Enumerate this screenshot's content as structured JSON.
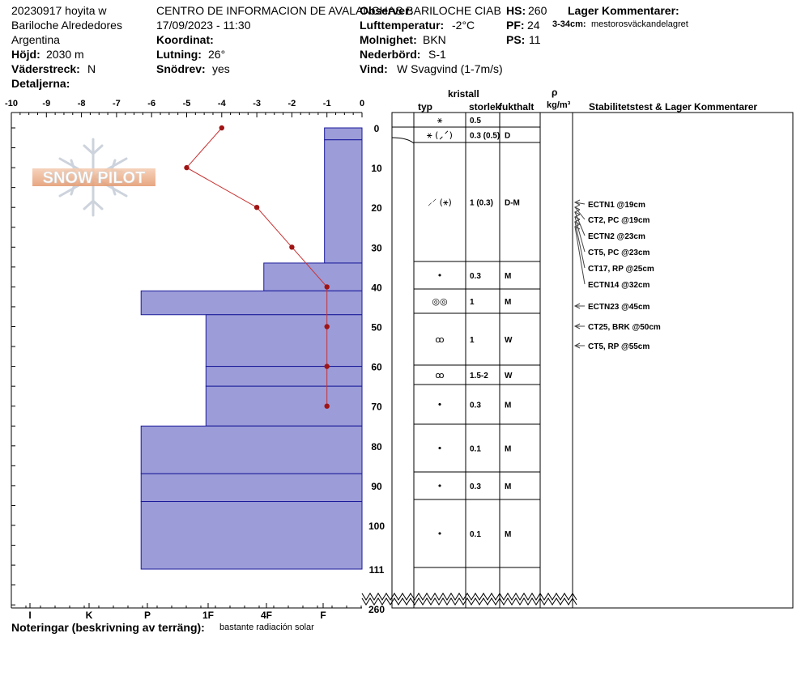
{
  "header": {
    "line1": "20230917 hoyita w",
    "line2": "Bariloche Alrededores",
    "line3": "Argentina",
    "hojd_label": "Höjd:",
    "hojd_value": "2030 m",
    "vader_label": "Väderstreck:",
    "vader_value": "N",
    "detaljerna_label": "Detaljerna:",
    "center_title": "CENTRO DE INFORMACION DE AVALANCHAS BARILOCHE CIAB",
    "datetime": "17/09/2023 - 11:30",
    "koordinat_label": "Koordinat:",
    "lutning_label": "Lutning:",
    "lutning_value": "26°",
    "snodrev_label": "Snödrev:",
    "snodrev_value": "yes",
    "observer_label": "Observer:",
    "lufttemp_label": "Lufttemperatur:",
    "lufttemp_value": "-2°C",
    "molnighet_label": "Molnighet:",
    "molnighet_value": "BKN",
    "nederbord_label": "Nederbörd:",
    "nederbord_value": "S-1",
    "vind_label": "Vind:",
    "vind_value": "W Svagvind (1-7m/s)",
    "hs_label": "HS:",
    "hs_value": "260",
    "pf_label": "PF:",
    "pf_value": "24",
    "ps_label": "PS:",
    "ps_value": "11",
    "lager_title": "Lager Kommentarer:",
    "lager_range": "3-34cm:",
    "lager_text": "mestorosväckandelagret"
  },
  "column_headers": {
    "kristall": "kristall",
    "typ": "typ",
    "storlek": "storlek",
    "fukthalt": "fukthalt",
    "rho": "ρ",
    "density_unit": "kg/m³",
    "stability": "Stabilitetstest & Lager Kommentarer"
  },
  "footer": {
    "notes_label": "Noteringar (beskrivning av terräng):",
    "notes_value": "bastante radiación solar"
  },
  "logo_text": "SNOW PILOT",
  "colors": {
    "hardness_fill": "#9c9cd8",
    "hardness_stroke": "#1a1a9a",
    "temp_line": "#c83232",
    "temp_point": "#a01414"
  },
  "chart_data": {
    "type": "snow-profile",
    "depth_axis": {
      "ticks": [
        0,
        10,
        20,
        30,
        40,
        50,
        60,
        70,
        80,
        90,
        100,
        111
      ],
      "bottom_label": "260",
      "range": [
        0,
        111
      ]
    },
    "temperature_axis": {
      "ticks": [
        "-10",
        "-9",
        "-8",
        "-7",
        "-6",
        "-5",
        "-4",
        "-3",
        "-2",
        "-1",
        "0"
      ],
      "range": [
        -10,
        0
      ]
    },
    "hardness_axis": {
      "labels": [
        "I",
        "K",
        "P",
        "1F",
        "4F",
        "F"
      ]
    },
    "temperature_profile": [
      {
        "depth": 0,
        "temp": -4
      },
      {
        "depth": 10,
        "temp": -5
      },
      {
        "depth": 20,
        "temp": -3
      },
      {
        "depth": 30,
        "temp": -2
      },
      {
        "depth": 40,
        "temp": -1
      },
      {
        "depth": 50,
        "temp": -1
      },
      {
        "depth": 60,
        "temp": -1
      },
      {
        "depth": 70,
        "temp": -1
      }
    ],
    "layers": [
      {
        "top": 0,
        "bottom": 3,
        "hardness": 1.07,
        "typ": "⚹",
        "size": "0.5",
        "wetness": ""
      },
      {
        "top": 3,
        "bottom": 34,
        "hardness": 1.07,
        "typ": "⚹ (⸝⸍)",
        "size": "0.3 (0.5)",
        "wetness": "D"
      },
      {
        "top": 34,
        "bottom": 41,
        "hardness": 2.8,
        "typ": "⸝⸍ (⚹)",
        "size": "1 (0.3)",
        "wetness": "D-M"
      },
      {
        "top": 41,
        "bottom": 47,
        "hardness": 6.3,
        "typ": "•",
        "size": "0.3",
        "wetness": "M"
      },
      {
        "top": 47,
        "bottom": 60,
        "hardness": 4.45,
        "typ": "◎◎",
        "size": "1",
        "wetness": "M"
      },
      {
        "top": 60,
        "bottom": 65,
        "hardness": 4.45,
        "typ": "ꝏ",
        "size": "1",
        "wetness": "W"
      },
      {
        "top": 65,
        "bottom": 75,
        "hardness": 4.45,
        "typ": "ꝏ",
        "size": "1.5-2",
        "wetness": "W"
      },
      {
        "top": 75,
        "bottom": 87,
        "hardness": 6.3,
        "typ": "•",
        "size": "0.3",
        "wetness": "M"
      },
      {
        "top": 87,
        "bottom": 94,
        "hardness": 6.3,
        "typ": "•",
        "size": "0.1",
        "wetness": "M"
      },
      {
        "top": 94,
        "bottom": 111,
        "hardness": 6.3,
        "typ": "•",
        "size": "0.3",
        "wetness": "M"
      }
    ],
    "extra_layer": {
      "typ": "•",
      "size": "0.1",
      "wetness": "M"
    },
    "stability_tests": [
      {
        "label": "ECTN1 @19cm",
        "depth": 19
      },
      {
        "label": "CT2, PC @19cm",
        "depth": 19
      },
      {
        "label": "ECTN2 @23cm",
        "depth": 23
      },
      {
        "label": "CT5, PC @23cm",
        "depth": 23
      },
      {
        "label": "CT17, RP @25cm",
        "depth": 25
      },
      {
        "label": "ECTN14 @32cm",
        "depth": 32
      },
      {
        "label": "ECTN23 @45cm",
        "depth": 45
      },
      {
        "label": "CT25, BRK @50cm",
        "depth": 50
      },
      {
        "label": "CT5, RP @55cm",
        "depth": 55
      }
    ]
  }
}
